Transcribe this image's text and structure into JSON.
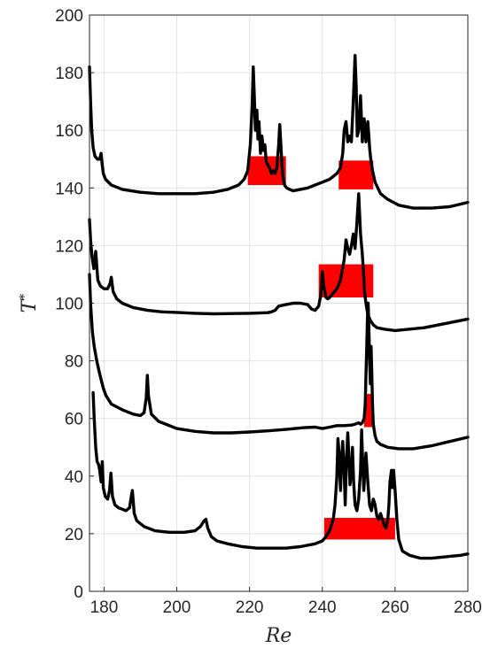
{
  "chart_data": {
    "type": "line",
    "xlabel": "Re",
    "ylabel": "T",
    "ylabel_sup": "*",
    "xlim": [
      176,
      280
    ],
    "ylim": [
      0,
      200
    ],
    "xticks": [
      180,
      200,
      220,
      240,
      260,
      280
    ],
    "yticks": [
      0,
      20,
      40,
      60,
      80,
      100,
      120,
      140,
      160,
      180,
      200
    ],
    "grid": true,
    "line_color": "#000000",
    "band_color": "#ff0000",
    "series": [
      {
        "x": [
          176,
          176.3,
          176.6,
          177,
          177.5,
          178.2,
          178.8,
          179.2,
          179.5,
          179.8,
          180.4,
          182,
          185,
          190,
          195,
          200,
          205,
          210,
          214,
          217,
          218.5,
          219.5,
          220.2,
          220.7,
          221,
          221.3,
          221.6,
          222,
          222.3,
          222.6,
          223,
          223.4,
          223.8,
          224.2,
          224.6,
          225,
          225.5,
          226,
          226.5,
          227,
          227.5,
          228,
          228.3,
          228.6,
          228.9,
          229.2,
          229.6,
          230.2,
          231,
          232,
          234,
          236,
          238,
          240,
          242,
          244,
          245,
          245.6,
          246,
          246.5,
          247,
          247.5,
          248,
          248.5,
          249,
          249.3,
          249.6,
          250,
          250.5,
          251,
          251.5,
          252,
          252.5,
          252.8,
          253,
          253.3,
          253.8,
          254.5,
          256,
          258,
          261,
          265,
          270,
          275,
          280
        ],
        "y": [
          182,
          170,
          160,
          154,
          151,
          150,
          150,
          152,
          148,
          145,
          143,
          141,
          139.5,
          138.5,
          138,
          138,
          138,
          138.5,
          139.5,
          141,
          143,
          146,
          155,
          168,
          182,
          172,
          160,
          167,
          157,
          163,
          152,
          158,
          153,
          155,
          149,
          148,
          147,
          145,
          146,
          145,
          147,
          155,
          162,
          155,
          148,
          144,
          141,
          140,
          139.5,
          139,
          139.5,
          140,
          141,
          142,
          143,
          145,
          147,
          152,
          160,
          163,
          156,
          158,
          156,
          170,
          186,
          175,
          158,
          160,
          172,
          156,
          164,
          156,
          163,
          158,
          154,
          150,
          146,
          142,
          138,
          136,
          134,
          133,
          133,
          133.5,
          135
        ]
      },
      {
        "x": [
          176,
          176.3,
          176.7,
          177.2,
          177.7,
          178.3,
          179,
          180,
          181,
          181.7,
          182,
          182.5,
          183.5,
          185,
          188,
          192,
          196,
          200,
          205,
          210,
          215,
          220,
          225,
          226,
          227,
          228,
          230,
          232,
          234,
          236,
          237,
          238,
          239,
          239.6,
          240,
          240.4,
          241,
          241.5,
          242,
          243,
          244,
          245,
          246,
          246.5,
          247,
          247.5,
          248,
          248.5,
          249,
          249.5,
          250,
          250.5,
          251,
          251.3,
          251.6,
          252,
          252.5,
          253.2,
          254,
          255,
          257,
          260,
          264,
          268,
          272,
          276,
          280
        ],
        "y": [
          129,
          122,
          116,
          112,
          118,
          108,
          106,
          105,
          105,
          107,
          109,
          104,
          101.5,
          100,
          98.5,
          97.5,
          97,
          96.8,
          96.5,
          96.3,
          96.4,
          96.5,
          96.7,
          97,
          97.5,
          99,
          99.5,
          100,
          100,
          99.5,
          98,
          97.5,
          99,
          103,
          111,
          106,
          102,
          101.5,
          102,
          103.5,
          105,
          108,
          115,
          122,
          119,
          117,
          120,
          124,
          119,
          128,
          138,
          124,
          117,
          111,
          104,
          100,
          96,
          94,
          92.5,
          91.5,
          91,
          90.5,
          91,
          91.5,
          92.5,
          93.5,
          94.5
        ]
      },
      {
        "x": [
          176,
          176.3,
          176.8,
          177.3,
          178,
          178.7,
          179.3,
          179.8,
          180.5,
          182,
          185,
          188,
          190,
          191,
          191.6,
          191.9,
          192.2,
          193,
          195,
          200,
          205,
          210,
          215,
          220,
          225,
          230,
          235,
          238,
          240,
          242,
          244,
          246,
          248,
          249,
          250,
          250.5,
          251,
          251.5,
          251.8,
          252,
          252.2,
          252.4,
          252.6,
          252.8,
          253,
          253.2,
          253.4,
          253.6,
          253.8,
          254,
          254.5,
          255,
          256,
          258,
          261,
          265,
          270,
          275,
          280
        ],
        "y": [
          110,
          100,
          90,
          85,
          80,
          76,
          73,
          70.5,
          68,
          65,
          63,
          61.5,
          61,
          62,
          67,
          75,
          68,
          61.5,
          59,
          56.5,
          55.5,
          55,
          55,
          55.3,
          55.7,
          56.2,
          56.8,
          57,
          56.5,
          57,
          57.5,
          57.5,
          57.7,
          58,
          58.5,
          58,
          58.5,
          60,
          65,
          75,
          85,
          95,
          100,
          92,
          80,
          72,
          85,
          76,
          65,
          58,
          54,
          52,
          51,
          50,
          49.5,
          49.5,
          50.5,
          52,
          53.5
        ]
      },
      {
        "x": [
          177,
          177.3,
          177.7,
          178.1,
          178.5,
          178.8,
          179.2,
          179.5,
          179.8,
          180.3,
          181,
          181.5,
          181.9,
          182.3,
          183,
          184,
          185,
          186,
          187,
          187.5,
          187.8,
          188.3,
          189,
          191,
          194,
          198,
          202,
          205,
          206.5,
          207.5,
          208,
          208.5,
          209.5,
          211,
          214,
          218,
          222,
          226,
          230,
          234,
          238,
          240,
          241,
          242,
          243,
          243.5,
          244,
          244.3,
          244.6,
          245,
          245.3,
          245.6,
          246,
          246.3,
          246.6,
          247,
          247.3,
          247.6,
          248,
          248.3,
          248.6,
          249,
          249.5,
          250,
          250.5,
          250.8,
          251.1,
          251.4,
          251.7,
          252,
          252.5,
          253,
          253.5,
          254,
          254.5,
          255,
          255.5,
          256,
          256.5,
          257,
          257.5,
          258,
          258.3,
          258.6,
          259,
          259.3,
          259.6,
          260,
          260.5,
          261,
          262,
          264,
          267,
          270,
          274,
          278,
          280
        ],
        "y": [
          69,
          60,
          50,
          45,
          44,
          42,
          38,
          45,
          36,
          33,
          32,
          35,
          41,
          33,
          30,
          29,
          28.5,
          28,
          29,
          33,
          35,
          27,
          24.5,
          22.5,
          21,
          20.5,
          20.5,
          21,
          22.5,
          24.5,
          25,
          22,
          19,
          17.5,
          16.5,
          15.5,
          15,
          15,
          15,
          15.5,
          16.5,
          17.5,
          19,
          21,
          25,
          30,
          40,
          53,
          48,
          35,
          45,
          52,
          42,
          30,
          45,
          55,
          47,
          37,
          42,
          50,
          38,
          30,
          28,
          32,
          42,
          56,
          45,
          35,
          42,
          48,
          38,
          30,
          28,
          32,
          30,
          26,
          25,
          27,
          25,
          23,
          22,
          25,
          30,
          38,
          42,
          36,
          42,
          35,
          25,
          18,
          14,
          12.5,
          11.5,
          11.5,
          12,
          12.5,
          13
        ]
      }
    ],
    "bands": [
      {
        "x": [
          219.5,
          230
        ],
        "y": [
          141,
          151
        ]
      },
      {
        "x": [
          244.5,
          254
        ],
        "y": [
          139.5,
          149.5
        ]
      },
      {
        "x": [
          239,
          254
        ],
        "y": [
          102,
          113.5
        ]
      },
      {
        "x": [
          251.5,
          254
        ],
        "y": [
          57,
          68.5
        ]
      },
      {
        "x": [
          240.5,
          260
        ],
        "y": [
          18,
          25.5
        ]
      }
    ]
  }
}
